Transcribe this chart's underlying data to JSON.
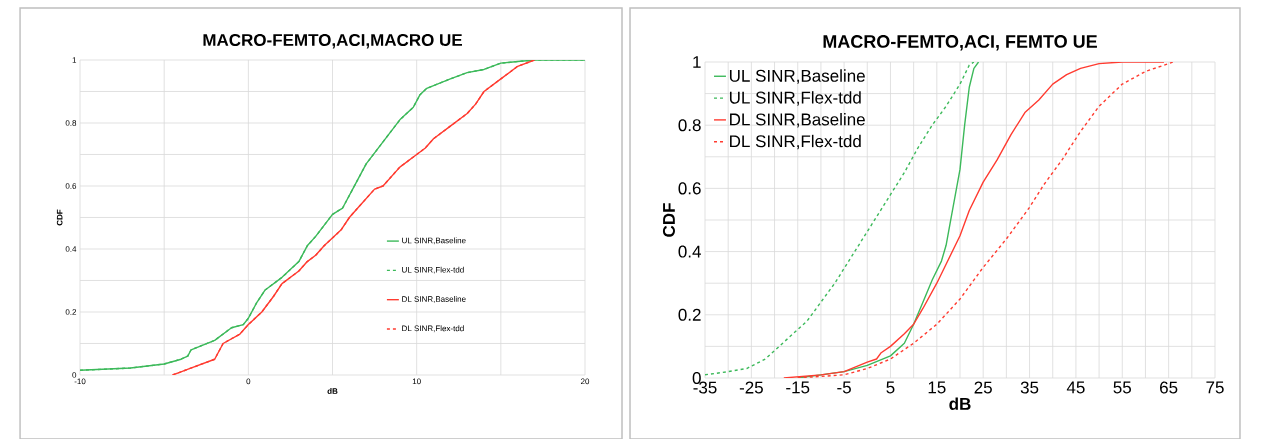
{
  "chart_data": [
    {
      "type": "line",
      "title": "MACRO-FEMTO,ACI,MACRO UE",
      "xlabel": "dB",
      "ylabel": "CDF",
      "grid": true,
      "legend": "right",
      "xlim": [
        -10,
        20
      ],
      "ylim": [
        0,
        1
      ],
      "xticks": [
        -10,
        {
          "value": -5,
          "label": null
        },
        0,
        {
          "value": 5,
          "label": null
        },
        10,
        {
          "value": 15,
          "label": null
        },
        20
      ],
      "yticks": [
        0,
        {
          "value": 0.1,
          "label": null
        },
        0.2,
        {
          "value": 0.3,
          "label": null
        },
        0.4,
        {
          "value": 0.5,
          "label": null
        },
        0.6,
        {
          "value": 0.7,
          "label": null
        },
        0.8,
        {
          "value": 0.9,
          "label": null
        },
        1
      ],
      "series": [
        {
          "name": "UL SINR,Baseline",
          "color": "#3cb95a",
          "line_style": "solid",
          "x": [
            -10,
            -7,
            -5,
            -4,
            -3.6,
            -3.4,
            -2,
            -1,
            -0.3,
            0,
            0.5,
            1,
            2,
            3,
            3.5,
            4,
            5,
            5.6,
            6.5,
            7,
            8,
            9,
            9.8,
            10.2,
            10.6,
            12,
            13,
            14,
            15,
            16,
            17,
            20
          ],
          "values": [
            0.015,
            0.022,
            0.035,
            0.05,
            0.06,
            0.08,
            0.11,
            0.15,
            0.16,
            0.18,
            0.23,
            0.27,
            0.31,
            0.36,
            0.41,
            0.44,
            0.51,
            0.53,
            0.62,
            0.67,
            0.74,
            0.81,
            0.85,
            0.89,
            0.91,
            0.94,
            0.96,
            0.97,
            0.99,
            0.995,
            1,
            1
          ]
        },
        {
          "name": "UL SINR,Flex-tdd",
          "color": "#3cb95a",
          "line_style": "dashed",
          "x": [
            -10,
            -7,
            -5,
            -4,
            -3.6,
            -3.4,
            -2,
            -1,
            -0.3,
            0,
            0.5,
            1,
            2,
            3,
            3.5,
            4,
            5,
            5.6,
            6.5,
            7,
            8,
            9,
            9.8,
            10.2,
            10.6,
            12,
            13,
            14,
            15,
            16,
            17,
            20
          ],
          "values": [
            0.015,
            0.022,
            0.035,
            0.05,
            0.06,
            0.08,
            0.11,
            0.15,
            0.16,
            0.18,
            0.23,
            0.27,
            0.31,
            0.36,
            0.41,
            0.44,
            0.51,
            0.53,
            0.62,
            0.67,
            0.74,
            0.81,
            0.85,
            0.89,
            0.91,
            0.94,
            0.96,
            0.97,
            0.99,
            0.995,
            1,
            1
          ]
        },
        {
          "name": "DL SINR,Baseline",
          "color": "#ff3b30",
          "line_style": "solid",
          "x": [
            -4.5,
            -4,
            -3.5,
            -2,
            -1.5,
            -0.5,
            0,
            0.8,
            1.5,
            2,
            3,
            3.5,
            4,
            4.5,
            5.5,
            6,
            6.5,
            7.5,
            8,
            9,
            10,
            10.5,
            11,
            12,
            13,
            13.5,
            14,
            15,
            16,
            17
          ],
          "values": [
            0,
            0.01,
            0.02,
            0.05,
            0.1,
            0.13,
            0.16,
            0.2,
            0.25,
            0.29,
            0.33,
            0.36,
            0.38,
            0.41,
            0.46,
            0.5,
            0.53,
            0.59,
            0.6,
            0.66,
            0.7,
            0.72,
            0.75,
            0.79,
            0.83,
            0.86,
            0.9,
            0.94,
            0.98,
            1
          ]
        },
        {
          "name": "DL SINR,Flex-tdd",
          "color": "#ff3b30",
          "line_style": "dashed",
          "x": [
            -4.5,
            -4,
            -3.5,
            -2,
            -1.5,
            -0.5,
            0,
            0.8,
            1.5,
            2,
            3,
            3.5,
            4,
            4.5,
            5.5,
            6,
            6.5,
            7.5,
            8,
            9,
            10,
            10.5,
            11,
            12,
            13,
            13.5,
            14,
            15,
            16,
            17
          ],
          "values": [
            0,
            0.01,
            0.02,
            0.05,
            0.1,
            0.13,
            0.16,
            0.2,
            0.25,
            0.29,
            0.33,
            0.36,
            0.38,
            0.41,
            0.46,
            0.5,
            0.53,
            0.59,
            0.6,
            0.66,
            0.7,
            0.72,
            0.75,
            0.79,
            0.83,
            0.86,
            0.9,
            0.94,
            0.98,
            1
          ]
        }
      ]
    },
    {
      "type": "line",
      "title": "MACRO-FEMTO,ACI, FEMTO UE",
      "xlabel": "dB",
      "ylabel": "CDF",
      "grid": true,
      "legend": "top left",
      "xlim": [
        -35,
        75
      ],
      "ylim": [
        0,
        1
      ],
      "xticks": [
        -35,
        {
          "value": -30,
          "label": null
        },
        -25,
        {
          "value": -20,
          "label": null
        },
        -15,
        {
          "value": -10,
          "label": null
        },
        -5,
        {
          "value": 0,
          "label": null
        },
        5,
        {
          "value": 10,
          "label": null
        },
        15,
        {
          "value": 20,
          "label": null
        },
        25,
        {
          "value": 30,
          "label": null
        },
        35,
        {
          "value": 40,
          "label": null
        },
        45,
        {
          "value": 50,
          "label": null
        },
        55,
        {
          "value": 60,
          "label": null
        },
        65,
        {
          "value": 70,
          "label": null
        },
        75
      ],
      "yticks": [
        0,
        {
          "value": 0.1,
          "label": null
        },
        0.2,
        {
          "value": 0.3,
          "label": null
        },
        0.4,
        {
          "value": 0.5,
          "label": null
        },
        0.6,
        {
          "value": 0.7,
          "label": null
        },
        0.8,
        {
          "value": 0.9,
          "label": null
        },
        1
      ],
      "series": [
        {
          "name": "UL SINR,Baseline",
          "color": "#3cb95a",
          "line_style": "solid",
          "x": [
            -15,
            -10,
            -5,
            0,
            5,
            8,
            10,
            12,
            14,
            16,
            17,
            18,
            19,
            20,
            21,
            22,
            23,
            24
          ],
          "values": [
            0,
            0.01,
            0.02,
            0.04,
            0.07,
            0.11,
            0.17,
            0.24,
            0.31,
            0.37,
            0.42,
            0.5,
            0.58,
            0.66,
            0.8,
            0.92,
            0.98,
            1
          ]
        },
        {
          "name": "UL SINR,Flex-tdd",
          "color": "#3cb95a",
          "line_style": "dashed",
          "x": [
            -35,
            -30,
            -26,
            -22,
            -19,
            -16,
            -13,
            -10,
            -7,
            -4,
            -1,
            2,
            5,
            8,
            11,
            14,
            17,
            20,
            22,
            23
          ],
          "values": [
            0.01,
            0.02,
            0.03,
            0.06,
            0.1,
            0.14,
            0.18,
            0.24,
            0.3,
            0.37,
            0.44,
            0.51,
            0.58,
            0.65,
            0.73,
            0.8,
            0.86,
            0.93,
            0.99,
            1
          ]
        },
        {
          "name": "DL SINR,Baseline",
          "color": "#ff3b30",
          "line_style": "solid",
          "x": [
            -18,
            -10,
            -5,
            0,
            2,
            3,
            5,
            8,
            10,
            12,
            15,
            17,
            20,
            22,
            25,
            28,
            31,
            34,
            37,
            40,
            43,
            46,
            50,
            55,
            64
          ],
          "values": [
            0,
            0.01,
            0.02,
            0.05,
            0.06,
            0.08,
            0.1,
            0.14,
            0.17,
            0.22,
            0.3,
            0.36,
            0.45,
            0.53,
            0.62,
            0.69,
            0.77,
            0.84,
            0.88,
            0.93,
            0.96,
            0.98,
            0.995,
            1,
            1
          ]
        },
        {
          "name": "DL SINR,Flex-tdd",
          "color": "#ff3b30",
          "line_style": "dashed",
          "x": [
            -15,
            -5,
            0,
            5,
            10,
            15,
            20,
            25,
            30,
            35,
            38,
            42,
            46,
            50,
            55,
            60,
            66
          ],
          "values": [
            0,
            0.01,
            0.03,
            0.06,
            0.11,
            0.17,
            0.25,
            0.35,
            0.44,
            0.54,
            0.61,
            0.69,
            0.78,
            0.86,
            0.93,
            0.97,
            1
          ]
        }
      ]
    }
  ]
}
